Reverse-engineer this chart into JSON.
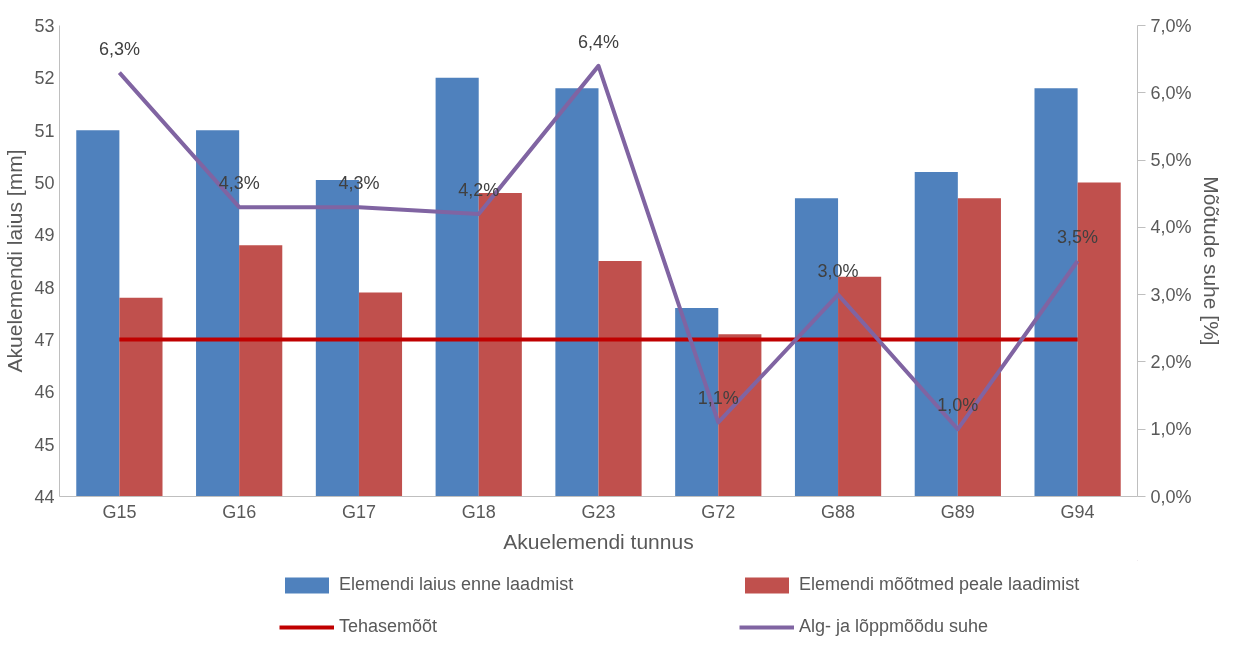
{
  "chart_data": {
    "type": "bar",
    "xlabel": "Akuelemendi tunnus",
    "ylabel": "Akuelemendi laius [mm]",
    "y2label": "Mõõtude suhe [%]",
    "categories": [
      "G15",
      "G16",
      "G17",
      "G18",
      "G23",
      "G72",
      "G88",
      "G89",
      "G94"
    ],
    "series": [
      {
        "name": "Elemendi laius enne laadmist",
        "color": "#4f81bd",
        "values": [
          51.0,
          51.0,
          50.05,
          52.0,
          51.8,
          47.6,
          49.7,
          50.2,
          51.8
        ]
      },
      {
        "name": "Elemendi mõõtmed peale laadimist",
        "color": "#c0504d",
        "values": [
          47.8,
          48.8,
          47.9,
          49.8,
          48.5,
          47.1,
          48.2,
          49.7,
          50.0
        ]
      },
      {
        "name": "Tehasemõõt",
        "type": "line",
        "color": "#c00000",
        "values": [
          47,
          47,
          47,
          47,
          47,
          47,
          47,
          47,
          47
        ]
      },
      {
        "name": "Alg- ja lõppmõõdu suhe",
        "type": "line",
        "axis": "y2",
        "color": "#8064a2",
        "values": [
          6.3,
          4.3,
          4.3,
          4.2,
          6.4,
          1.1,
          3.0,
          1.0,
          3.5
        ],
        "value_labels": [
          "6,3%",
          "4,3%",
          "4,3%",
          "4,2%",
          "6,4%",
          "1,1%",
          "3,0%",
          "1,0%",
          "3,5%"
        ]
      }
    ],
    "ylim": [
      44,
      53
    ],
    "yticks": [
      44,
      45,
      46,
      47,
      48,
      49,
      50,
      51,
      52,
      53
    ],
    "y2lim": [
      0,
      7
    ],
    "y2ticks": [
      {
        "value": 0,
        "label": "0,0%"
      },
      {
        "value": 1,
        "label": "1,0%"
      },
      {
        "value": 2,
        "label": "2,0%"
      },
      {
        "value": 3,
        "label": "3,0%"
      },
      {
        "value": 4,
        "label": "4,0%"
      },
      {
        "value": 5,
        "label": "5,0%"
      },
      {
        "value": 6,
        "label": "6,0%"
      },
      {
        "value": 7,
        "label": "7,0%"
      }
    ],
    "grid": false,
    "legend": "bottom"
  }
}
